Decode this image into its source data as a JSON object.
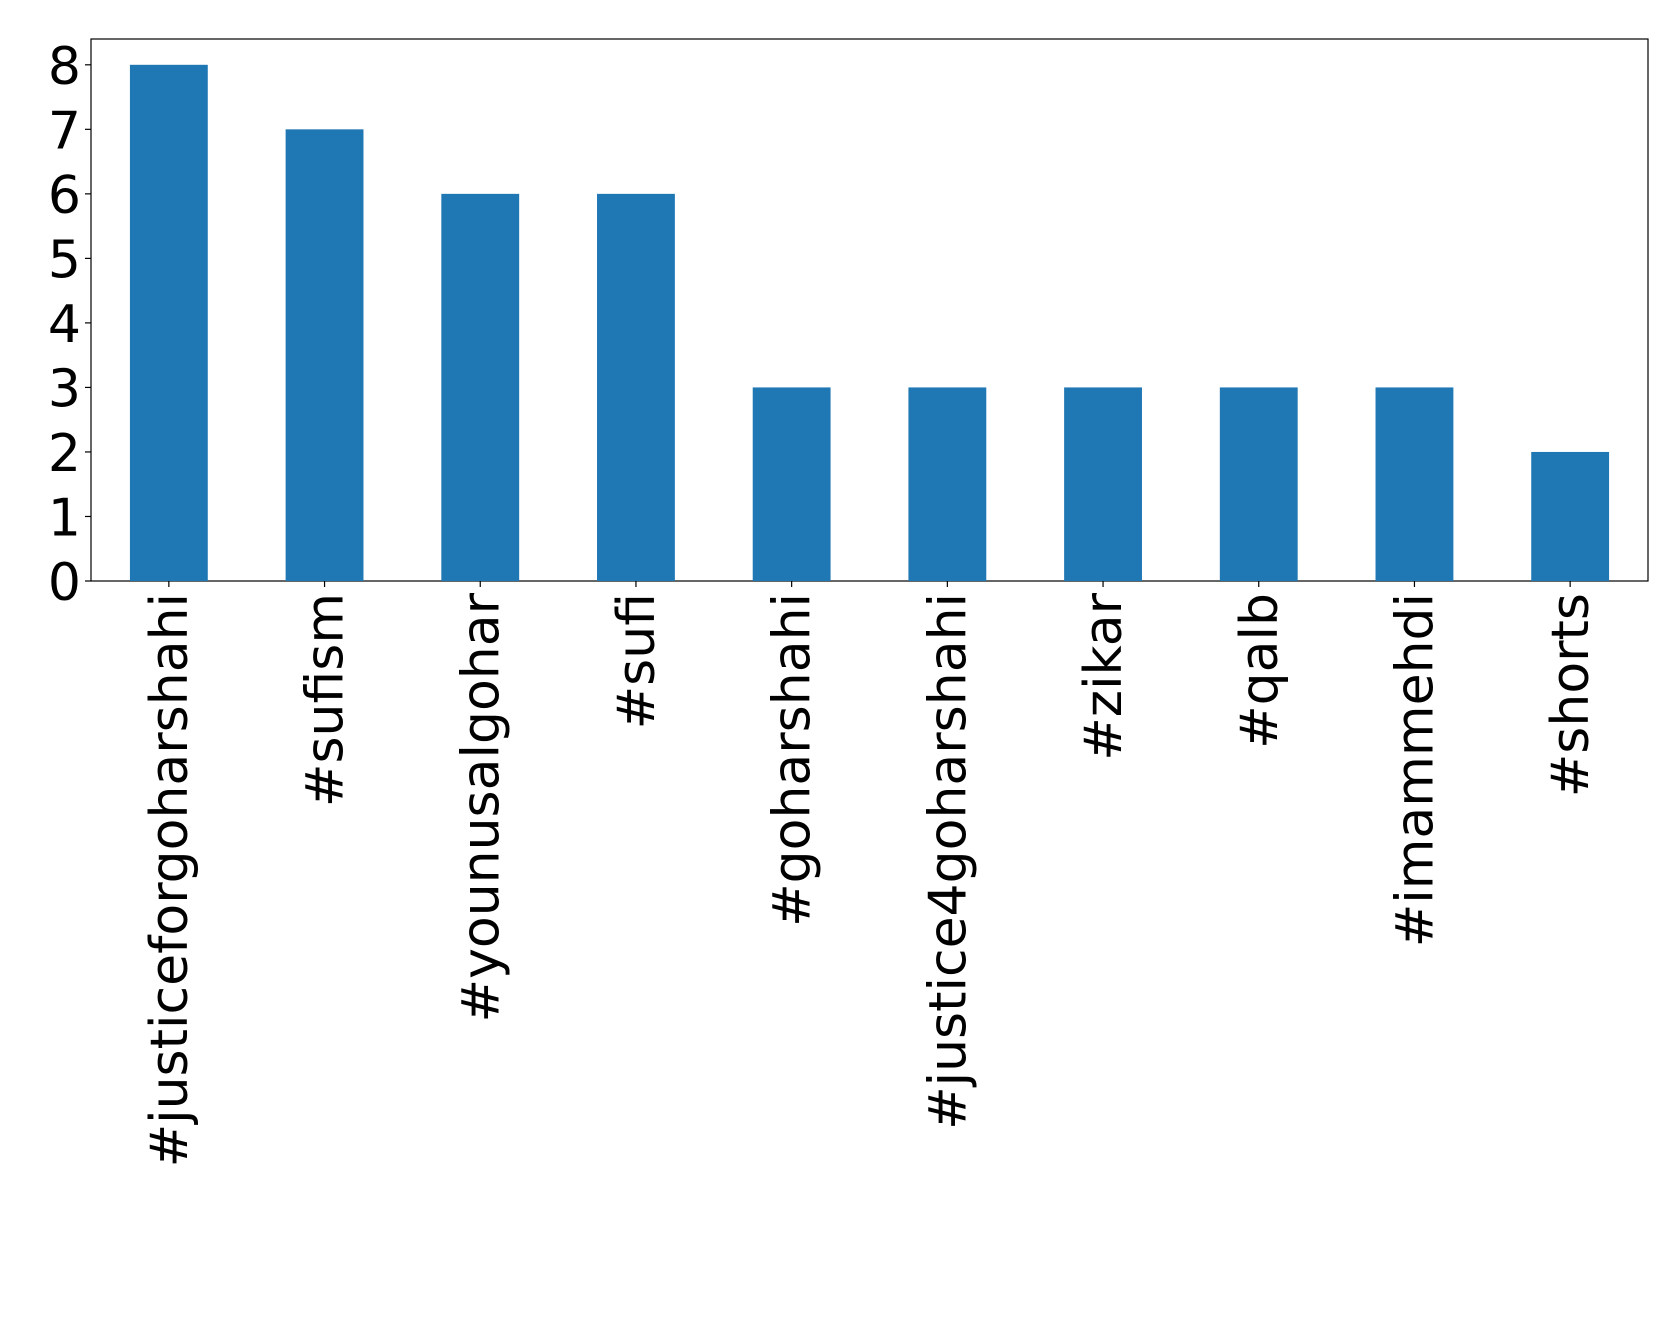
{
  "chart_data": {
    "type": "bar",
    "categories": [
      "#justiceforgoharshahi",
      "#sufism",
      "#younusalgohar",
      "#sufi",
      "#goharshahi",
      "#justice4goharshahi",
      "#zikar",
      "#qalb",
      "#imammehdi",
      "#shorts"
    ],
    "values": [
      8,
      7,
      6,
      6,
      3,
      3,
      3,
      3,
      3,
      2
    ],
    "color": "#1f77b4",
    "ylim": [
      0,
      8.4
    ],
    "yticks": [
      0,
      1,
      2,
      3,
      4,
      5,
      6,
      7,
      8
    ],
    "grid": false
  }
}
